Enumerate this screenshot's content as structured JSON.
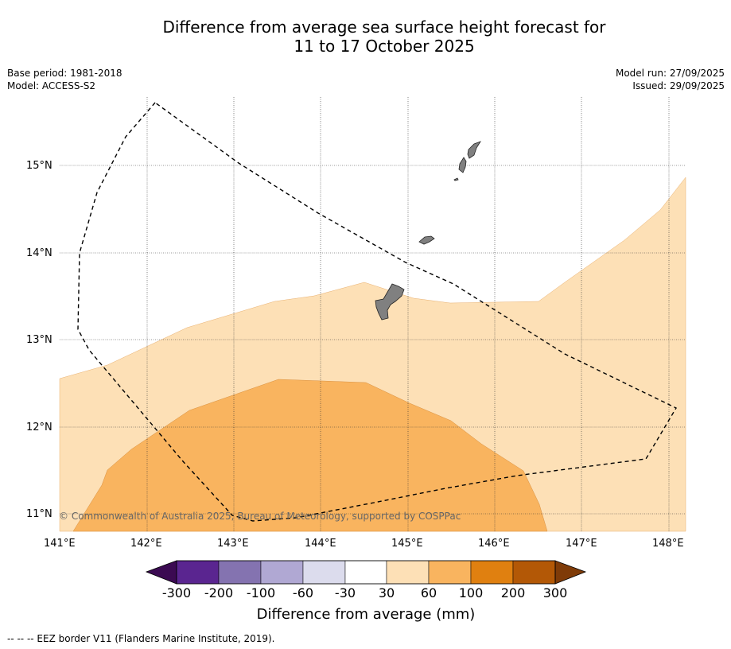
{
  "title_line1": "Difference from average sea surface height forecast for",
  "title_line2": "11 to 17 October 2025",
  "meta_left": {
    "base_period": "Base period: 1981-2018",
    "model": "Model: ACCESS-S2"
  },
  "meta_right": {
    "model_run": "Model run: 27/09/2025",
    "issued": "Issued: 29/09/2025"
  },
  "copyright": "© Commonwealth of Australia 2025, Bureau of Meteorology, supported by COSPPac",
  "footnote": "--  --  -- EEZ border V11 (Flanders Marine Institute, 2019).",
  "map": {
    "lon_labels": [
      "141°E",
      "142°E",
      "143°E",
      "144°E",
      "145°E",
      "146°E",
      "147°E",
      "148°E"
    ],
    "lat_labels": [
      "15°N",
      "14°N",
      "13°N",
      "12°N",
      "11°N"
    ],
    "lon_range": [
      141.0,
      148.2
    ],
    "lat_range": [
      10.8,
      15.8
    ]
  },
  "colorbar": {
    "title": "Difference from average (mm)",
    "ticks": [
      "-300",
      "-200",
      "-100",
      "-60",
      "-30",
      "30",
      "60",
      "100",
      "200",
      "300"
    ],
    "colors": [
      "#3b0a52",
      "#5a2590",
      "#8473b0",
      "#b0a8d3",
      "#dcdced",
      "#ffffff",
      "#fde0b6",
      "#f9b45f",
      "#e08010",
      "#b35806",
      "#7f3b08"
    ]
  },
  "legend_colors": {
    "band_30_60": "#fde0b6",
    "band_60_100": "#f9b45f",
    "land": "#808080"
  }
}
